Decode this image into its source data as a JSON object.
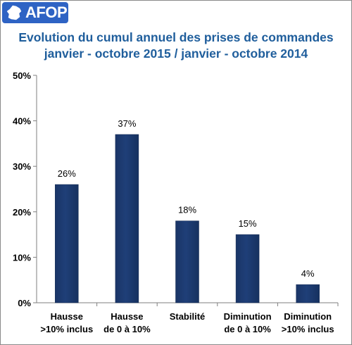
{
  "logo": {
    "text": "AFOP",
    "icon": "france-map-icon"
  },
  "colors": {
    "title": "#1f5e9c",
    "bar": "#1f3f78",
    "logo_bg": "#2e63c4"
  },
  "chart_data": {
    "type": "bar",
    "title": "Evolution du cumul annuel des prises de commandes",
    "subtitle": "janvier - octobre 2015 / janvier - octobre 2014",
    "categories": [
      [
        "Hausse",
        ">10% inclus"
      ],
      [
        "Hausse",
        "de 0 à 10%"
      ],
      [
        "Stabilité"
      ],
      [
        "Diminution",
        "de 0 à 10%"
      ],
      [
        "Diminution",
        ">10% inclus"
      ]
    ],
    "values": [
      26,
      37,
      18,
      15,
      4
    ],
    "data_labels": [
      "26%",
      "37%",
      "18%",
      "15%",
      "4%"
    ],
    "ylim": [
      0,
      50
    ],
    "yticks": [
      0,
      10,
      20,
      30,
      40,
      50
    ],
    "ytick_labels": [
      "0%",
      "10%",
      "20%",
      "30%",
      "40%",
      "50%"
    ],
    "grid": false,
    "legend": "none"
  }
}
